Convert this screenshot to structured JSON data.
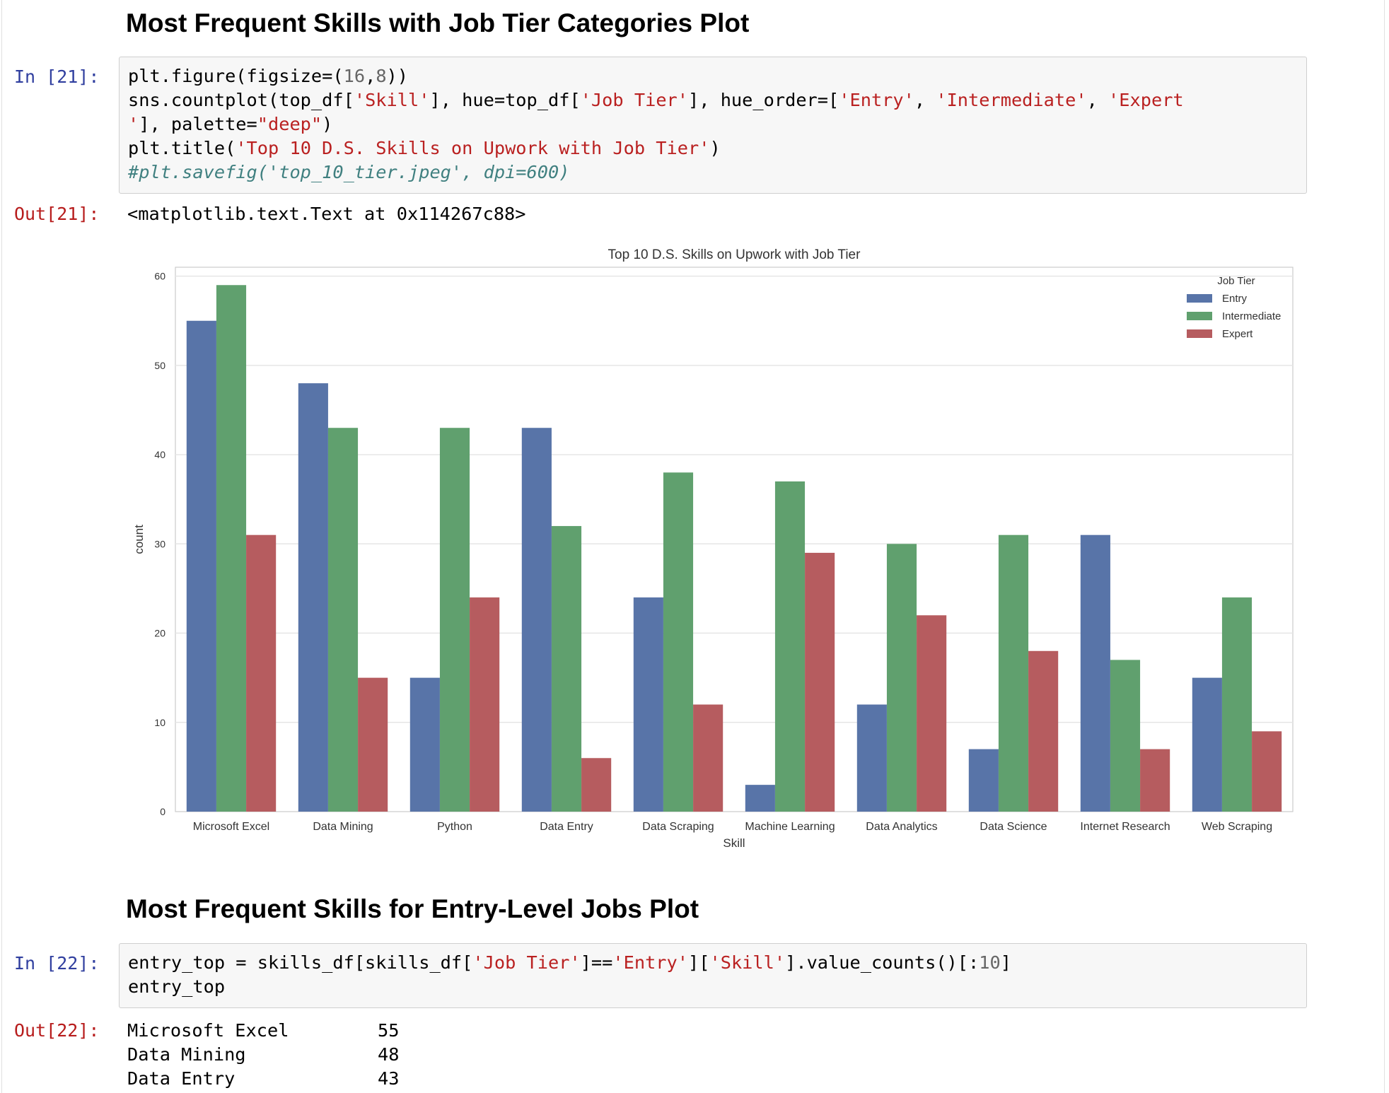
{
  "headings": {
    "h1": "Most Frequent Skills with Job Tier Categories Plot",
    "h2": "Most Frequent Skills for Entry-Level Jobs Plot"
  },
  "cell21": {
    "in_prompt": "In [21]:",
    "out_prompt": "Out[21]:",
    "code": {
      "l1_a": "plt.figure(figsize=(",
      "l1_b": "16",
      "l1_c": ",",
      "l1_d": "8",
      "l1_e": "))",
      "l2_a": "sns.countplot(top_df[",
      "l2_b": "'Skill'",
      "l2_c": "], hue=top_df[",
      "l2_d": "'Job Tier'",
      "l2_e": "], hue_order=[",
      "l2_f": "'Entry'",
      "l2_g": ", ",
      "l2_h": "'Intermediate'",
      "l2_i": ", ",
      "l2_j": "'Expert",
      "l3_a": "'",
      "l3_b": "], palette=",
      "l3_c": "\"deep\"",
      "l3_d": ")",
      "l4_a": "plt.title(",
      "l4_b": "'Top 10 D.S. Skills on Upwork with Job Tier'",
      "l4_c": ")",
      "l5": "#plt.savefig('top_10_tier.jpeg', dpi=600)"
    },
    "output_text": "<matplotlib.text.Text at 0x114267c88>"
  },
  "cell22": {
    "in_prompt": "In [22]:",
    "out_prompt": "Out[22]:",
    "code": {
      "l1_a": "entry_top = skills_df[skills_df[",
      "l1_b": "'Job Tier'",
      "l1_c": "]==",
      "l1_d": "'Entry'",
      "l1_e": "][",
      "l1_f": "'Skill'",
      "l1_g": "].value_counts()[:",
      "l1_h": "10",
      "l1_i": "]",
      "l2": "entry_top"
    },
    "output_rows": [
      {
        "label": "Microsoft Excel",
        "value": "55"
      },
      {
        "label": "Data Mining",
        "value": "48"
      },
      {
        "label": "Data Entry",
        "value": "43"
      }
    ]
  },
  "colors": {
    "entry": "#5874a8",
    "intermediate": "#60a06e",
    "expert": "#b65c5f",
    "grid": "#e6e6e6"
  },
  "chart_data": {
    "type": "bar",
    "title": "Top 10 D.S. Skills on Upwork with Job Tier",
    "xlabel": "Skill",
    "ylabel": "count",
    "ylim": [
      0,
      61
    ],
    "yticks": [
      0,
      10,
      20,
      30,
      40,
      50,
      60
    ],
    "grid": true,
    "legend_title": "Job Tier",
    "legend_position": "top-right",
    "categories": [
      "Microsoft Excel",
      "Data Mining",
      "Python",
      "Data Entry",
      "Data Scraping",
      "Machine Learning",
      "Data Analytics",
      "Data Science",
      "Internet Research",
      "Web Scraping"
    ],
    "series": [
      {
        "name": "Entry",
        "values": [
          55,
          48,
          15,
          43,
          24,
          3,
          12,
          7,
          31,
          15
        ]
      },
      {
        "name": "Intermediate",
        "values": [
          59,
          43,
          43,
          32,
          38,
          37,
          30,
          31,
          17,
          24
        ]
      },
      {
        "name": "Expert",
        "values": [
          31,
          15,
          24,
          6,
          12,
          29,
          22,
          18,
          7,
          9
        ]
      }
    ]
  }
}
